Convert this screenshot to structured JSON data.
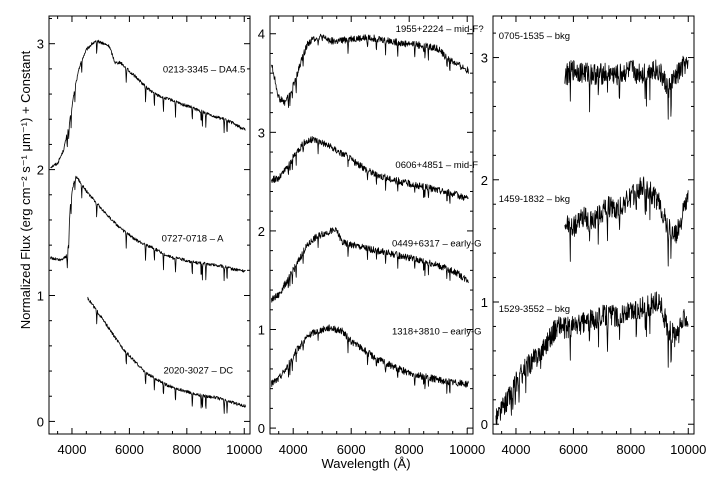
{
  "figure": {
    "ylabel": "Normalized Flux (erg cm⁻² s⁻¹ μm⁻¹) + Constant",
    "xlabel": "Wavelength (Å)"
  },
  "chart_data": [
    {
      "type": "line",
      "panel": "left",
      "xlim": [
        3200,
        10200
      ],
      "ylim": [
        -0.1,
        3.22
      ],
      "xticks": [
        "4000",
        "6000",
        "8000",
        "10000"
      ],
      "yticks": [
        "0",
        "1",
        "2",
        "3"
      ],
      "series": [
        {
          "name": "0213-3345 – DA4.5",
          "label_at": [
            8600,
            2.77
          ],
          "x": [
            3250,
            3500,
            3700,
            3900,
            4100,
            4300,
            4500,
            4700,
            4900,
            5100,
            5300,
            5500,
            5700,
            6000,
            6300,
            6600,
            6900,
            7200,
            7500,
            7800,
            8100,
            8400,
            8700,
            9000,
            9300,
            9600,
            9900,
            10050
          ],
          "y": [
            2.02,
            2.05,
            2.15,
            2.35,
            2.65,
            2.85,
            2.95,
            3.0,
            3.02,
            3.0,
            2.98,
            2.85,
            2.85,
            2.78,
            2.72,
            2.65,
            2.6,
            2.57,
            2.55,
            2.52,
            2.5,
            2.47,
            2.45,
            2.42,
            2.4,
            2.37,
            2.33,
            2.32
          ]
        },
        {
          "name": "0727-0718 – A",
          "label_at": [
            8200,
            1.43
          ],
          "x": [
            3250,
            3600,
            3850,
            3950,
            4100,
            4300,
            4500,
            4800,
            5100,
            5400,
            5700,
            6000,
            6300,
            6600,
            6900,
            7200,
            7500,
            7800,
            8100,
            8400,
            8700,
            9000,
            9300,
            9600,
            9900,
            10050
          ],
          "y": [
            1.3,
            1.28,
            1.32,
            1.75,
            1.95,
            1.9,
            1.83,
            1.75,
            1.67,
            1.6,
            1.53,
            1.48,
            1.43,
            1.4,
            1.37,
            1.33,
            1.3,
            1.29,
            1.27,
            1.26,
            1.25,
            1.24,
            1.23,
            1.21,
            1.2,
            1.19
          ]
        },
        {
          "name": "2020-3027 – DC",
          "label_at": [
            8400,
            0.38
          ],
          "x": [
            4550,
            4800,
            5100,
            5400,
            5700,
            6000,
            6300,
            6600,
            6900,
            7200,
            7500,
            7800,
            8100,
            8400,
            8700,
            9000,
            9300,
            9600,
            9900,
            10050
          ],
          "y": [
            0.98,
            0.9,
            0.8,
            0.7,
            0.6,
            0.52,
            0.45,
            0.38,
            0.34,
            0.3,
            0.27,
            0.25,
            0.23,
            0.21,
            0.2,
            0.19,
            0.17,
            0.15,
            0.13,
            0.12
          ]
        }
      ]
    },
    {
      "type": "line",
      "panel": "middle",
      "xlim": [
        3200,
        10200
      ],
      "ylim": [
        -0.06,
        4.18
      ],
      "xticks": [
        "4000",
        "6000",
        "8000",
        "10000"
      ],
      "yticks": [
        "0",
        "1",
        "2",
        "3",
        "4"
      ],
      "series": [
        {
          "name": "1955+2224 – mid-F?",
          "label_at": [
            9050,
            4.02
          ],
          "x": [
            3250,
            3500,
            3700,
            3900,
            4100,
            4300,
            4500,
            4700,
            4900,
            5100,
            5300,
            5500,
            5700,
            6000,
            6300,
            6600,
            6900,
            7200,
            7500,
            7800,
            8100,
            8400,
            8700,
            9000,
            9300,
            9600,
            9900,
            10050
          ],
          "y": [
            3.7,
            3.35,
            3.3,
            3.4,
            3.55,
            3.75,
            3.9,
            3.95,
            3.97,
            3.95,
            3.93,
            3.92,
            3.93,
            3.95,
            3.95,
            3.96,
            3.95,
            3.93,
            3.92,
            3.9,
            3.9,
            3.88,
            3.87,
            3.85,
            3.75,
            3.7,
            3.65,
            3.62
          ]
        },
        {
          "name": "0606+4851 – mid-F",
          "label_at": [
            8950,
            2.64
          ],
          "x": [
            3250,
            3500,
            3800,
            4100,
            4400,
            4700,
            5000,
            5300,
            5600,
            5900,
            6200,
            6500,
            6800,
            7100,
            7400,
            7700,
            8000,
            8300,
            8600,
            8900,
            9200,
            9500,
            9800,
            10050
          ],
          "y": [
            2.52,
            2.53,
            2.65,
            2.8,
            2.9,
            2.93,
            2.9,
            2.85,
            2.8,
            2.75,
            2.68,
            2.63,
            2.58,
            2.55,
            2.52,
            2.5,
            2.48,
            2.46,
            2.44,
            2.42,
            2.4,
            2.38,
            2.35,
            2.33
          ]
        },
        {
          "name": "0449+6317 – early-G",
          "label_at": [
            8950,
            1.84
          ],
          "x": [
            3250,
            3500,
            3800,
            4100,
            4400,
            4700,
            5000,
            5300,
            5500,
            5700,
            6000,
            6300,
            6600,
            6900,
            7200,
            7500,
            7800,
            8100,
            8400,
            8700,
            9000,
            9300,
            9600,
            9900,
            10050
          ],
          "y": [
            1.3,
            1.35,
            1.5,
            1.65,
            1.82,
            1.92,
            1.97,
            2.0,
            2.0,
            1.88,
            1.86,
            1.84,
            1.82,
            1.8,
            1.78,
            1.76,
            1.74,
            1.72,
            1.7,
            1.68,
            1.65,
            1.62,
            1.58,
            1.52,
            1.5
          ]
        },
        {
          "name": "1318+3810 – early-G",
          "label_at": [
            8950,
            0.95
          ],
          "x": [
            3250,
            3500,
            3800,
            4100,
            4400,
            4700,
            5000,
            5300,
            5500,
            5700,
            6000,
            6300,
            6600,
            6900,
            7200,
            7500,
            7800,
            8100,
            8400,
            8700,
            9000,
            9300,
            9600,
            9900,
            10050
          ],
          "y": [
            0.45,
            0.5,
            0.62,
            0.78,
            0.9,
            0.97,
            1.0,
            1.02,
            1.0,
            0.98,
            0.88,
            0.82,
            0.76,
            0.7,
            0.66,
            0.62,
            0.58,
            0.55,
            0.53,
            0.51,
            0.49,
            0.47,
            0.46,
            0.45,
            0.45
          ]
        }
      ]
    },
    {
      "type": "line",
      "panel": "right",
      "xlim": [
        3200,
        10200
      ],
      "ylim": [
        -0.08,
        3.34
      ],
      "xticks": [
        "4000",
        "6000",
        "8000",
        "10000"
      ],
      "yticks": [
        "0",
        "1",
        "2",
        "3"
      ],
      "series": [
        {
          "name": "0705-1535 – bkg",
          "label_at": [
            3400,
            3.15
          ],
          "x": [
            5700,
            6000,
            6300,
            6600,
            6900,
            7200,
            7500,
            7800,
            8100,
            8400,
            8700,
            9000,
            9300,
            9600,
            9900,
            10000
          ],
          "y": [
            2.85,
            2.9,
            2.88,
            2.87,
            2.86,
            2.88,
            2.85,
            2.88,
            2.9,
            2.87,
            2.92,
            2.88,
            2.75,
            2.85,
            2.95,
            2.9
          ]
        },
        {
          "name": "1459-1832 – bkg",
          "label_at": [
            3400,
            1.82
          ],
          "x": [
            5700,
            6000,
            6300,
            6600,
            6900,
            7200,
            7500,
            7800,
            8100,
            8400,
            8700,
            9000,
            9300,
            9600,
            9900,
            10000
          ],
          "y": [
            1.65,
            1.6,
            1.7,
            1.65,
            1.72,
            1.78,
            1.75,
            1.82,
            1.88,
            1.95,
            1.9,
            1.8,
            1.6,
            1.55,
            1.8,
            1.85
          ]
        },
        {
          "name": "1529-3552 – bkg",
          "label_at": [
            3400,
            0.92
          ],
          "x": [
            3300,
            3500,
            3700,
            3900,
            4100,
            4300,
            4500,
            4700,
            4900,
            5100,
            5300,
            5500,
            5700,
            6000,
            6300,
            6600,
            6900,
            7200,
            7500,
            7800,
            8100,
            8400,
            8700,
            9000,
            9300,
            9600,
            9900,
            10000
          ],
          "y": [
            0.05,
            0.12,
            0.2,
            0.3,
            0.38,
            0.45,
            0.5,
            0.55,
            0.62,
            0.68,
            0.75,
            0.82,
            0.78,
            0.8,
            0.82,
            0.85,
            0.88,
            0.9,
            0.88,
            0.9,
            0.92,
            0.95,
            0.98,
            1.0,
            0.78,
            0.7,
            0.9,
            0.85
          ]
        }
      ]
    }
  ]
}
